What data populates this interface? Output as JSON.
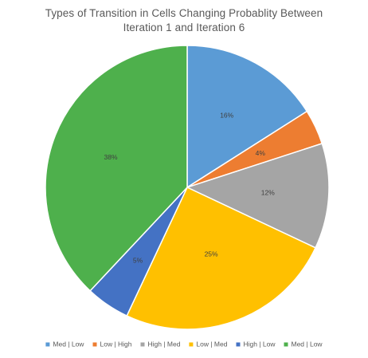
{
  "chart_data": {
    "type": "pie",
    "title": "Types of Transition in Cells Changing Probablity Between Iteration 1 and Iteration 6",
    "title_lines": [
      "Types of Transition in Cells Changing Probablity Between",
      "Iteration 1 and Iteration 6"
    ],
    "categories": [
      "Med | Low",
      "Low | High",
      "High | Med",
      "Low | Med",
      "High | Low",
      "Med | Low"
    ],
    "values": [
      16,
      4,
      12,
      25,
      5,
      38
    ],
    "labels": [
      "16%",
      "4%",
      "12%",
      "25%",
      "5%",
      "38%"
    ],
    "colors": [
      "#5B9BD5",
      "#ED7D31",
      "#A5A5A5",
      "#FFC000",
      "#4472C4",
      "#4EB04C"
    ],
    "legend_position": "bottom",
    "start_angle": "12 o'clock",
    "direction": "clockwise"
  }
}
